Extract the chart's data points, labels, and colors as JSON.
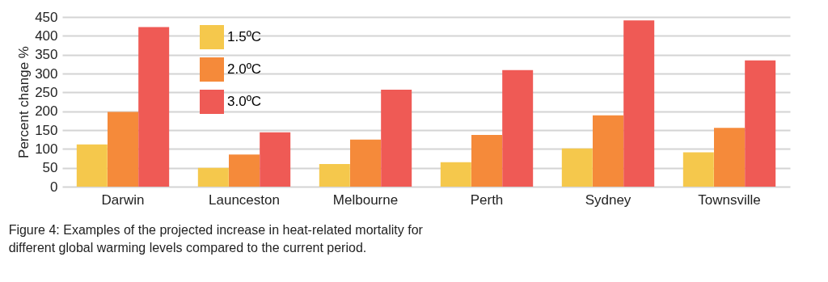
{
  "chart_data": {
    "type": "bar",
    "ylabel": "Percent change %",
    "categories": [
      "Darwin",
      "Launceston",
      "Melbourne",
      "Perth",
      "Sydney",
      "Townsville"
    ],
    "series": [
      {
        "name": "1.5ºC",
        "color": "#f5c84c",
        "values": [
          112,
          50,
          60,
          65,
          101,
          91
        ]
      },
      {
        "name": "2.0ºC",
        "color": "#f58a3a",
        "values": [
          198,
          85,
          125,
          137,
          189,
          156
        ]
      },
      {
        "name": "3.0ºC",
        "color": "#ef5a55",
        "values": [
          423,
          144,
          257,
          309,
          441,
          335
        ]
      }
    ],
    "ylim": [
      0,
      450
    ],
    "yticks": [
      0,
      50,
      100,
      150,
      200,
      250,
      300,
      350,
      400,
      450
    ],
    "grid": "y",
    "legend": "top left",
    "annotations": [
      "Figure 4: Examples of the projected increase in heat-related mortality for different global warming levels compared to the current period."
    ]
  }
}
